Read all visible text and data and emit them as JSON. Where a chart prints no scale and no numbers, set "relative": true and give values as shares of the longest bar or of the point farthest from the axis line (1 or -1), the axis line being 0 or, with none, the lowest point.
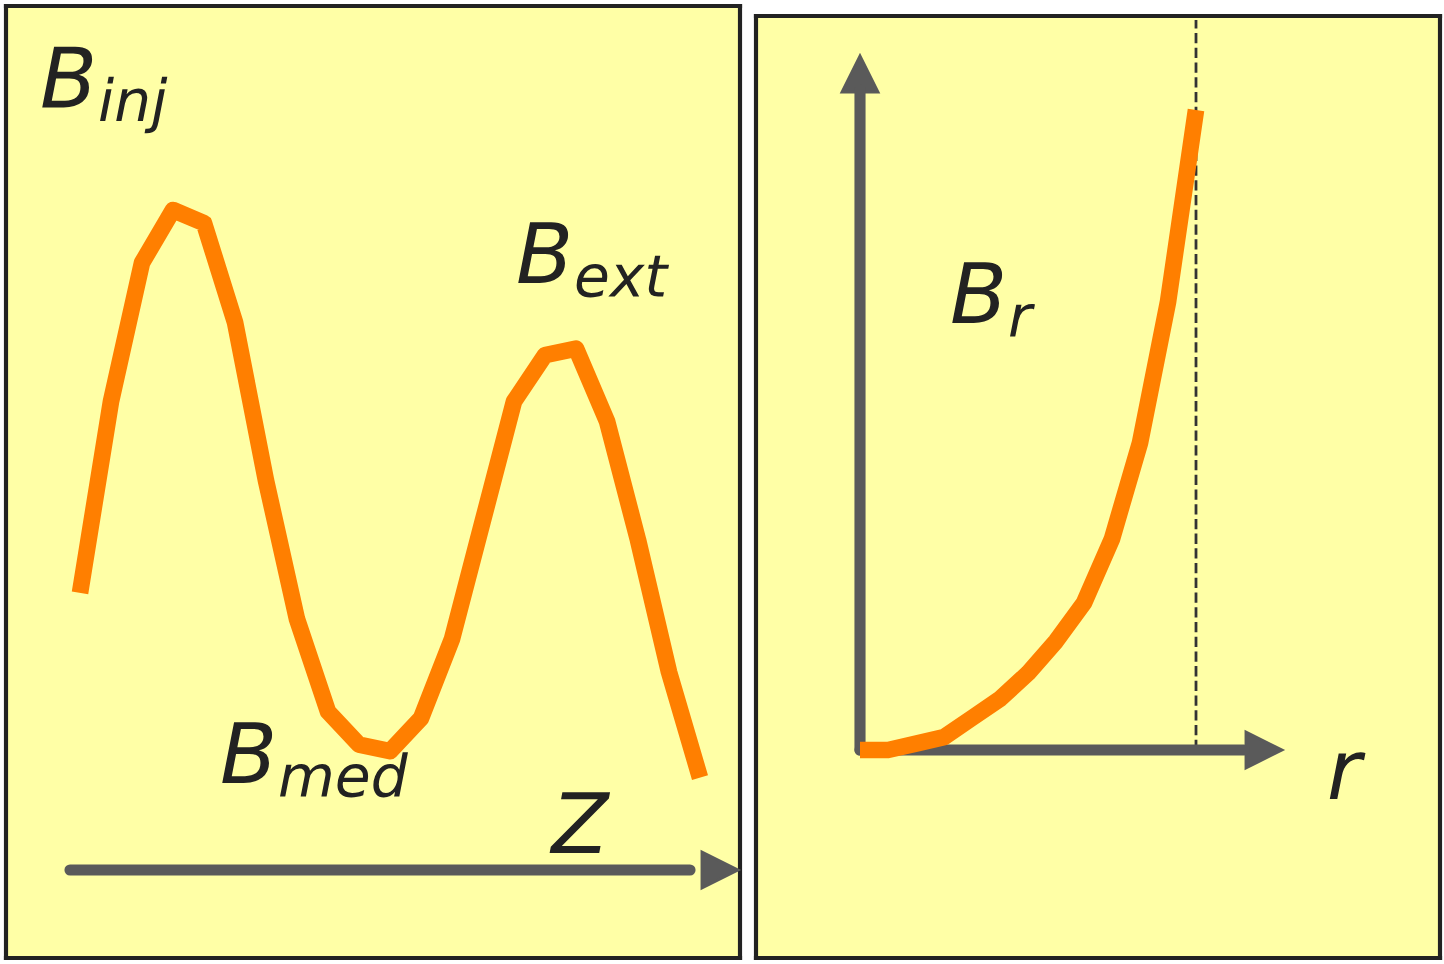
{
  "chart_data": [
    {
      "type": "line",
      "relative": true,
      "xlabel": "Z",
      "categories": [
        null,
        null,
        null,
        null,
        null,
        null,
        null,
        null,
        null,
        null,
        null,
        null,
        null,
        null,
        null,
        null,
        null,
        null,
        null,
        null,
        null
      ],
      "series": [
        {
          "color": "#ff7f00",
          "values": [
            0.42,
            0.71,
            0.92,
            1.0,
            0.98,
            0.83,
            0.59,
            0.38,
            0.24,
            0.19,
            0.18,
            0.23,
            0.35,
            0.53,
            0.71,
            0.78,
            0.79,
            0.68,
            0.5,
            0.3,
            0.14
          ]
        }
      ],
      "annotations": [
        "B$_{inj}$",
        "B$_{med}$",
        "B$_{ext}$"
      ],
      "legend": false,
      "marker": "none",
      "line_style": "solid"
    },
    {
      "type": "line",
      "relative": true,
      "xlabel": "r",
      "categories": [
        null,
        null,
        null,
        null,
        null,
        null,
        null,
        null,
        null,
        null,
        null,
        null,
        null
      ],
      "series": [
        {
          "name": "B$_{r}$",
          "color": "#ff7f00",
          "values": [
            0,
            0,
            0.01,
            0.02,
            0.05,
            0.08,
            0.12,
            0.17,
            0.23,
            0.33,
            0.48,
            0.7,
            1.0
          ]
        }
      ],
      "legend": false,
      "marker": "none",
      "line_style": "solid"
    }
  ]
}
